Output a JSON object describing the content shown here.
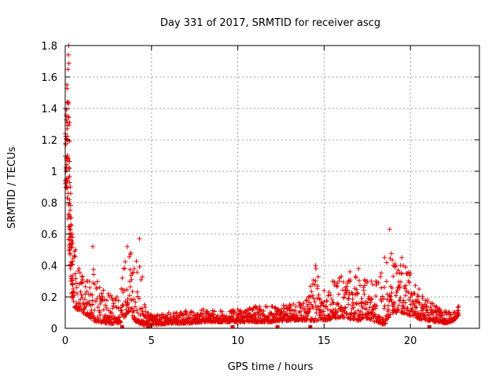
{
  "chart_data": {
    "type": "scatter",
    "title": "Day 331 of 2017, SRMTID for receiver ascg",
    "xlabel": "GPS time / hours",
    "ylabel": "SRMTID / TECUs",
    "xlim": [
      0,
      24
    ],
    "ylim": [
      0,
      1.8
    ],
    "xticks": [
      0,
      5,
      10,
      15,
      20
    ],
    "yticks": [
      0,
      0.2,
      0.4,
      0.6,
      0.8,
      1,
      1.2,
      1.4,
      1.6,
      1.8
    ],
    "grid": true,
    "marker": "+",
    "color": "#e00000",
    "envelope_description": "approximate SRMTID value envelope vs time (hours)",
    "envelope": {
      "x": [
        0.0,
        0.1,
        0.2,
        0.3,
        0.4,
        0.6,
        0.8,
        1.0,
        1.3,
        1.6,
        2.0,
        2.5,
        3.0,
        3.3,
        3.6,
        3.8,
        4.0,
        4.3,
        4.6,
        5.0,
        6.0,
        7.0,
        8.0,
        9.0,
        10.0,
        11.0,
        12.0,
        13.0,
        14.0,
        14.5,
        15.0,
        15.5,
        16.0,
        16.5,
        17.0,
        17.5,
        18.0,
        18.5,
        18.8,
        19.0,
        19.5,
        20.0,
        20.5,
        21.0,
        21.5,
        22.0,
        22.5,
        22.8
      ],
      "low": [
        0.9,
        0.8,
        0.55,
        0.35,
        0.18,
        0.12,
        0.12,
        0.1,
        0.08,
        0.05,
        0.04,
        0.03,
        0.03,
        0.04,
        0.1,
        0.1,
        0.05,
        0.03,
        0.02,
        0.02,
        0.03,
        0.03,
        0.04,
        0.04,
        0.04,
        0.04,
        0.04,
        0.05,
        0.05,
        0.05,
        0.05,
        0.06,
        0.07,
        0.06,
        0.05,
        0.06,
        0.04,
        0.02,
        0.08,
        0.1,
        0.1,
        0.08,
        0.06,
        0.05,
        0.04,
        0.03,
        0.05,
        0.08
      ],
      "high": [
        1.4,
        1.55,
        1.8,
        0.9,
        0.6,
        0.5,
        0.38,
        0.33,
        0.3,
        0.52,
        0.26,
        0.22,
        0.2,
        0.32,
        0.52,
        0.48,
        0.38,
        0.57,
        0.15,
        0.08,
        0.1,
        0.11,
        0.12,
        0.11,
        0.12,
        0.14,
        0.14,
        0.15,
        0.18,
        0.4,
        0.24,
        0.3,
        0.33,
        0.36,
        0.38,
        0.3,
        0.3,
        0.45,
        0.63,
        0.4,
        0.45,
        0.35,
        0.25,
        0.18,
        0.14,
        0.11,
        0.1,
        0.14
      ]
    },
    "zero_points_x": [
      3.3,
      4.8,
      9.7,
      12.3,
      14.2,
      21.1
    ]
  }
}
